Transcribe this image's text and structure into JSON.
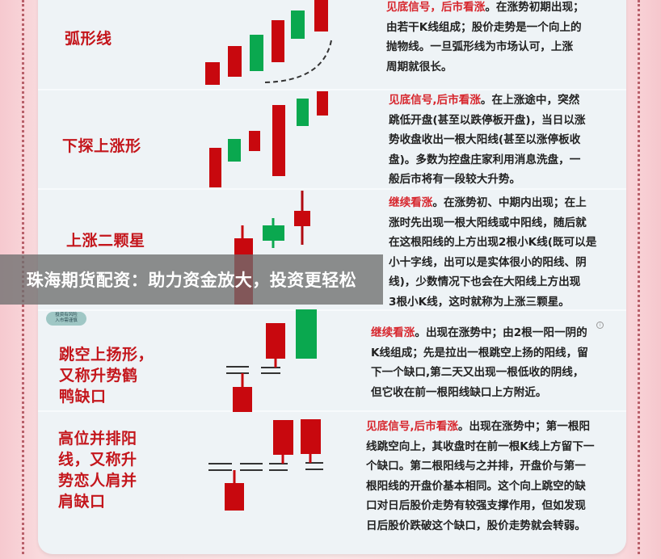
{
  "banner": "珠海期货配资：助力资金放大，投资更轻松",
  "badge": [
    "投资有风险",
    "入市需谨慎"
  ],
  "colors": {
    "bullish_red": "#c8080e",
    "bearish_green": "#0aa84f",
    "title_red": "#c4161c",
    "banner_gray": "#6e6e6e"
  },
  "patterns": [
    {
      "title": [
        "弧形线"
      ],
      "highlight": "见底信号，后市看涨",
      "lines": [
        "。在涨势初期出现；",
        "由若干K线组成；股价走势是一个向上的",
        "抛物线。一旦弧形线为市场认可，上涨",
        "周期就很长。"
      ]
    },
    {
      "title": [
        "下探上涨形"
      ],
      "highlight": "见底信号,后市看涨",
      "lines": [
        "。在上涨途中，突然",
        "跳低开盘(甚至以跌停板开盘)，当日以涨",
        "势收盘收出一根大阳线(甚至以涨停板收",
        "盘)。多数为控盘庄家利用消息洗盘，一",
        "般后市将有一段较大升势。"
      ]
    },
    {
      "title": [
        "上涨二颗星"
      ],
      "highlight": "继续看涨",
      "lines": [
        "。在涨势初、中期内出现；在上",
        "涨时先出现一根大阳线或中阳线，随后就",
        "在这根阳线的上方出现2根小K线(既可以是",
        "小十字线，出可以是实体很小的阳线、阴",
        "线)，少数情况下也会在大阳线上方出现",
        "3根小K线，这时就称为上涨三颗星。"
      ]
    },
    {
      "title": [
        "跳空上扬形，",
        "又称升势鹤",
        "鸭缺口"
      ],
      "highlight": "继续看涨",
      "lines": [
        "。出现在涨势中；由2根一阳一阴的",
        "K线组成；先是拉出一根跳空上扬的阳线，留",
        "下一个缺口,第二天又出现一根低收的阴线，",
        "但它收在前一根阳线缺口上方附近。"
      ]
    },
    {
      "title": [
        "高位并排阳",
        "线，又称升",
        "势恋人肩并",
        "肩缺口"
      ],
      "highlight": "见底信号,后市看涨",
      "lines": [
        "。出现在涨势中；第一根阳",
        "线跳空向上，其收盘时在前一根K线上方留下一",
        "个缺口。第二根阳线与之并排，开盘价与第一",
        "根阳线的开盘价基本相同。这个向上跳空的缺",
        "口对日后股价走势有较强支撑作用，但如发现",
        "日后股价跌破这个缺口，股价走势就会转弱。"
      ]
    }
  ]
}
